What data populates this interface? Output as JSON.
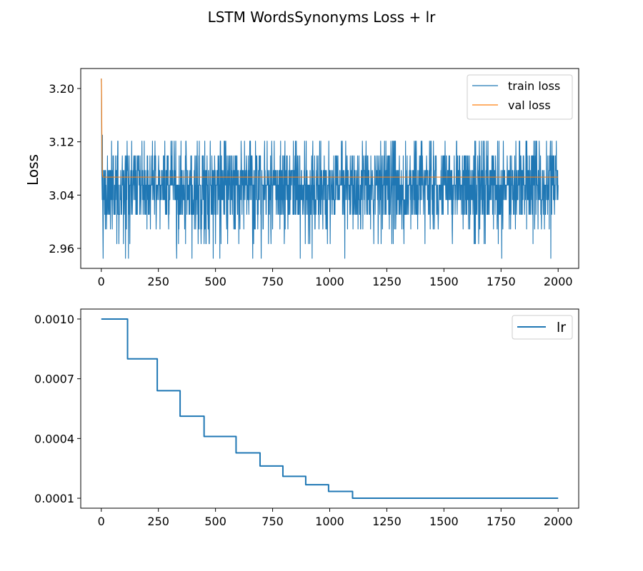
{
  "chart_data": {
    "title": "LSTM WordsSynonyms Loss + lr",
    "subplots": [
      {
        "type": "line",
        "ylabel": "Loss",
        "xlim": [
          -90,
          2090
        ],
        "ylim": [
          2.93,
          3.23
        ],
        "xticks": [
          0,
          250,
          500,
          750,
          1000,
          1250,
          1500,
          1750,
          2000
        ],
        "xtick_labels": [
          "0",
          "250",
          "500",
          "750",
          "1000",
          "1250",
          "1500",
          "1750",
          "2000"
        ],
        "yticks": [
          2.96,
          3.04,
          3.12,
          3.2
        ],
        "ytick_labels": [
          "2.96",
          "3.04",
          "3.12",
          "3.20"
        ],
        "legend": "top-right",
        "series": [
          {
            "name": "train loss",
            "color": "#1f77b4",
            "description": "noisy, oscillating between about 2.94 and 3.13 with mean about 3.06 over epochs 0 to 2000",
            "x_range": [
              0,
              2000
            ],
            "start_value": 3.215,
            "levels": [
              2.945,
              2.967,
              2.989,
              3.011,
              3.033,
              3.055,
              3.077,
              3.099,
              3.121
            ],
            "min": 2.945,
            "max": 3.13
          },
          {
            "name": "val loss",
            "color": "#ff7f0e",
            "x": [
              0,
              1,
              2,
              3,
              4,
              5,
              7,
              2000
            ],
            "y": [
              3.215,
              3.205,
              3.16,
              3.11,
              3.085,
              3.072,
              3.067,
              3.067
            ]
          }
        ]
      },
      {
        "type": "line",
        "ylabel": "",
        "xlim": [
          -90,
          2090
        ],
        "ylim": [
          5e-05,
          0.00105
        ],
        "xticks": [
          0,
          250,
          500,
          750,
          1000,
          1250,
          1500,
          1750,
          2000
        ],
        "xtick_labels": [
          "0",
          "250",
          "500",
          "750",
          "1000",
          "1250",
          "1500",
          "1750",
          "2000"
        ],
        "yticks": [
          0.0001,
          0.0004,
          0.0007,
          0.001
        ],
        "ytick_labels": [
          "0.0001",
          "0.0004",
          "0.0007",
          "0.0010"
        ],
        "legend": "top-right",
        "series": [
          {
            "name": "lr",
            "color": "#1f77b4",
            "step": "post",
            "x": [
              0,
              115,
              245,
              345,
              450,
              590,
              695,
              795,
              895,
              995,
              1100,
              2000
            ],
            "y": [
              0.001,
              0.0008,
              0.00064,
              0.000512,
              0.00041,
              0.000328,
              0.000262,
              0.00021,
              0.000168,
              0.000134,
              0.0001,
              0.0001
            ]
          }
        ]
      }
    ]
  }
}
